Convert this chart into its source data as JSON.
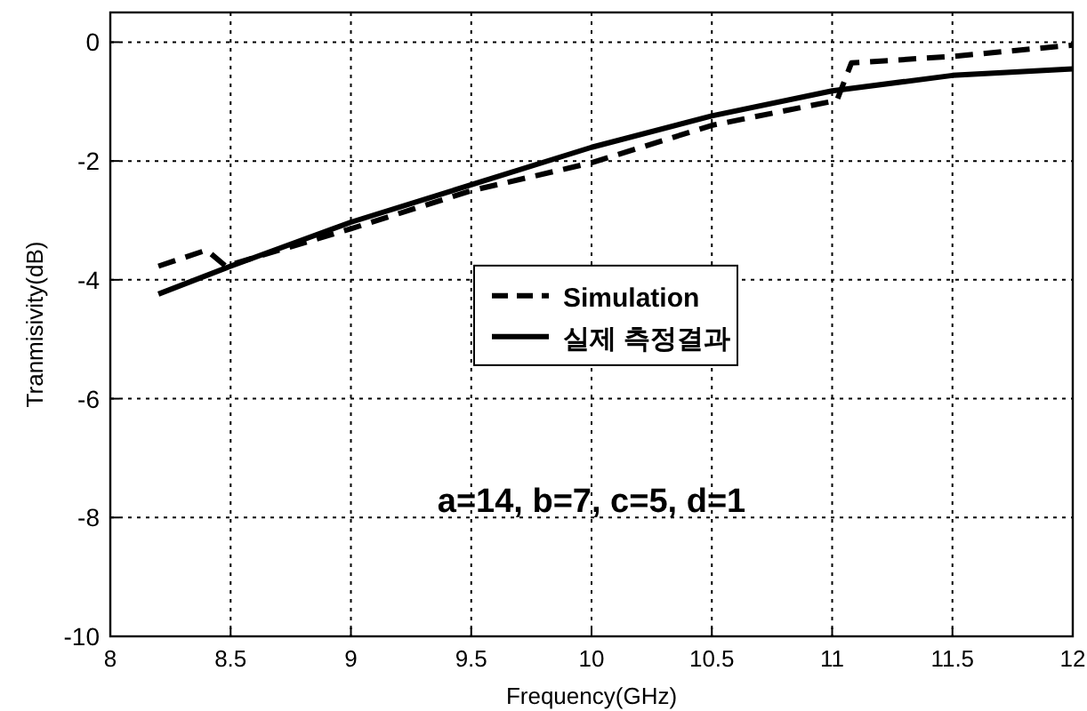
{
  "chart_data": {
    "type": "line",
    "xlabel": "Frequency(GHz)",
    "ylabel": "Tranmisivity(dB)",
    "xlim": [
      8,
      12
    ],
    "ylim": [
      -10,
      0.5
    ],
    "xticks": [
      8,
      8.5,
      9,
      9.5,
      10,
      10.5,
      11,
      11.5,
      12
    ],
    "yticks": [
      -10,
      -8,
      -6,
      -4,
      -2,
      0
    ],
    "grid": true,
    "legend": "center",
    "marker": "none",
    "annotations": [
      "a=14, b=7, c=5, d=1"
    ],
    "series": [
      {
        "name": "Simulation",
        "color": "#000000",
        "line_style": "dashed",
        "x": [
          8.2,
          8.4,
          8.48,
          9,
          9.5,
          10,
          10.5,
          11.02,
          11.08,
          11.5,
          12
        ],
        "values": [
          -3.77,
          -3.5,
          -3.77,
          -3.14,
          -2.5,
          -2.03,
          -1.4,
          -0.98,
          -0.35,
          -0.24,
          -0.05
        ]
      },
      {
        "name": "실제 측정결과",
        "color": "#000000",
        "line_style": "solid",
        "x": [
          8.2,
          8.5,
          9,
          9.5,
          10,
          10.5,
          11,
          11.5,
          12
        ],
        "values": [
          -4.24,
          -3.77,
          -3.03,
          -2.4,
          -1.77,
          -1.24,
          -0.82,
          -0.56,
          -0.45
        ]
      }
    ]
  }
}
